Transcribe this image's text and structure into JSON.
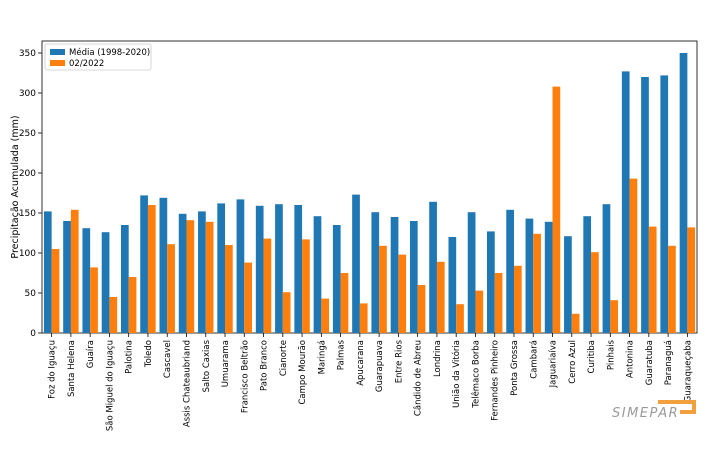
{
  "chart_data": {
    "type": "bar",
    "title": "",
    "xlabel": "",
    "ylabel": "Precipitação Acumulada (mm)",
    "ylim": [
      0,
      365
    ],
    "yticks": [
      0,
      50,
      100,
      150,
      200,
      250,
      300,
      350
    ],
    "legend_position": "top-left",
    "categories": [
      "Foz do Iguaçu",
      "Santa Helena",
      "Guaíra",
      "São Miguel do Iguaçu",
      "Palotina",
      "Toledo",
      "Cascavel",
      "Assis Chateaubriand",
      "Salto Caxias",
      "Umuarama",
      "Francisco Beltrão",
      "Pato Branco",
      "Cianorte",
      "Campo Mourão",
      "Maringá",
      "Palmas",
      "Apucarana",
      "Guarapuava",
      "Entre Rios",
      "Cândido de Abreu",
      "Londrina",
      "União da Vitória",
      "Telêmaco Borba",
      "Fernandes Pinheiro",
      "Ponta Grossa",
      "Cambará",
      "Jaguariaíva",
      "Cerro Azul",
      "Curitiba",
      "Pinhais",
      "Antonina",
      "Guaratuba",
      "Paranaguá",
      "Guaraqueçaba"
    ],
    "series": [
      {
        "name": "Média (1998-2020)",
        "color": "#1f77b4",
        "values": [
          152,
          140,
          131,
          126,
          135,
          172,
          169,
          149,
          152,
          162,
          167,
          159,
          161,
          160,
          146,
          135,
          173,
          151,
          145,
          140,
          164,
          120,
          151,
          127,
          154,
          143,
          139,
          121,
          146,
          161,
          327,
          320,
          322,
          350
        ]
      },
      {
        "name": "02/2022",
        "color": "#ff7f0e",
        "values": [
          105,
          154,
          82,
          45,
          70,
          160,
          111,
          141,
          139,
          110,
          88,
          118,
          51,
          117,
          43,
          75,
          37,
          109,
          98,
          60,
          89,
          36,
          53,
          75,
          84,
          124,
          308,
          24,
          101,
          41,
          193,
          133,
          109,
          132
        ]
      }
    ]
  },
  "logo": {
    "text": "SIMEPAR",
    "color": "#f2a03d"
  }
}
